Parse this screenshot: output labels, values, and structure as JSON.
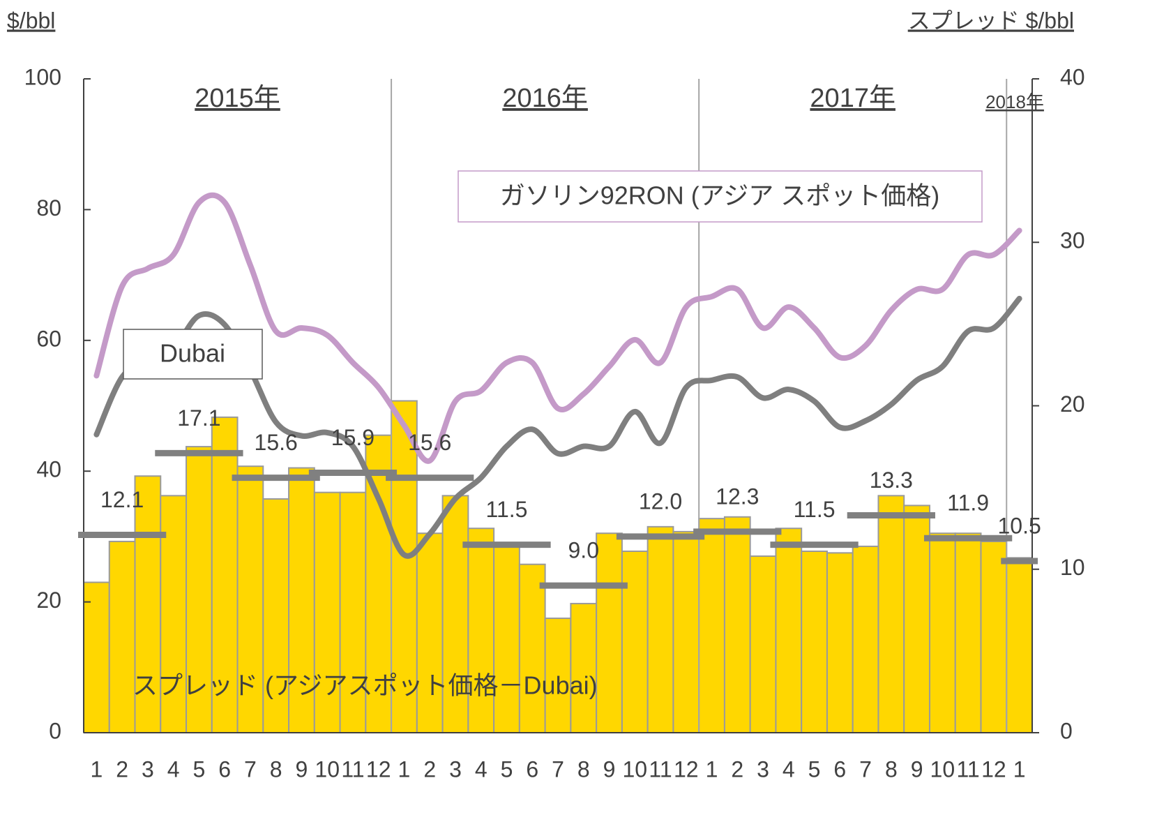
{
  "chart_data": {
    "type": "bar_line",
    "ylabel": "$/bbl",
    "y2label": "スプレッド $/bbl",
    "years": [
      "2015年",
      "2016年",
      "2017年",
      "2018年"
    ],
    "categories": [
      "1",
      "2",
      "3",
      "4",
      "5",
      "6",
      "7",
      "8",
      "9",
      "10",
      "11",
      "12",
      "1",
      "2",
      "3",
      "4",
      "5",
      "6",
      "7",
      "8",
      "9",
      "10",
      "11",
      "12",
      "1",
      "2",
      "3",
      "4",
      "5",
      "6",
      "7",
      "8",
      "9",
      "10",
      "11",
      "12",
      "1"
    ],
    "ylim": [
      0,
      100
    ],
    "yticks": [
      0,
      20,
      40,
      60,
      80,
      100
    ],
    "y2lim": [
      0,
      40
    ],
    "y2ticks": [
      0,
      10,
      20,
      30,
      40
    ],
    "series": [
      {
        "name": "スプレッド (アジアスポット価格－Dubai)",
        "kind": "bar",
        "axis": "y2",
        "color": "#ffd700",
        "values": [
          9.2,
          11.7,
          15.7,
          14.5,
          17.5,
          19.3,
          16.3,
          14.3,
          16.2,
          14.7,
          14.7,
          18.2,
          20.3,
          12.2,
          14.5,
          12.5,
          11.5,
          10.3,
          7.0,
          7.9,
          12.2,
          11.1,
          12.6,
          12.3,
          13.1,
          13.2,
          10.8,
          12.5,
          11.1,
          11.0,
          11.4,
          14.5,
          13.9,
          12.2,
          12.2,
          11.7,
          10.7
        ]
      },
      {
        "name": "ガソリン92RON (アジア スポット価格)",
        "kind": "line",
        "color": "#c49ac8",
        "values": [
          54.6,
          68.3,
          71,
          73.1,
          81.1,
          81.1,
          71.5,
          61.4,
          61.9,
          60.8,
          56.6,
          52.8,
          47,
          41.6,
          50.7,
          52.3,
          56.6,
          56.6,
          49.6,
          51.8,
          56,
          60.1,
          56.6,
          65.1,
          66.7,
          67.8,
          61.9,
          65.1,
          61.9,
          57.4,
          59.2,
          64.6,
          67.8,
          67.8,
          73.1,
          73.1,
          76.8
        ]
      },
      {
        "name": "Dubai",
        "kind": "line",
        "color": "#7f7f7f",
        "values": [
          45.6,
          54.4,
          56.6,
          58.7,
          63.8,
          62.4,
          55.5,
          47.5,
          45.4,
          45.9,
          43.8,
          35.8,
          27.2,
          30.4,
          35.8,
          39,
          43.8,
          46.4,
          42.7,
          43.8,
          43.8,
          49.1,
          44.3,
          52.8,
          53.9,
          54.4,
          51.2,
          52.5,
          50.7,
          46.7,
          47.7,
          50.2,
          53.9,
          56,
          61.4,
          61.9,
          66.4
        ]
      }
    ],
    "quarterly": {
      "axis": "y2",
      "color": "#808080",
      "values": [
        12.1,
        17.1,
        15.6,
        15.9,
        15.6,
        11.5,
        9.0,
        12.0,
        12.3,
        11.5,
        13.3,
        11.9,
        10.5
      ],
      "value_labels": [
        "12.1",
        "17.1",
        "15.6",
        "15.9",
        "15.6",
        "11.5",
        "9.0",
        "12.0",
        "12.3",
        "11.5",
        "13.3",
        "11.9",
        "10.5"
      ]
    }
  }
}
